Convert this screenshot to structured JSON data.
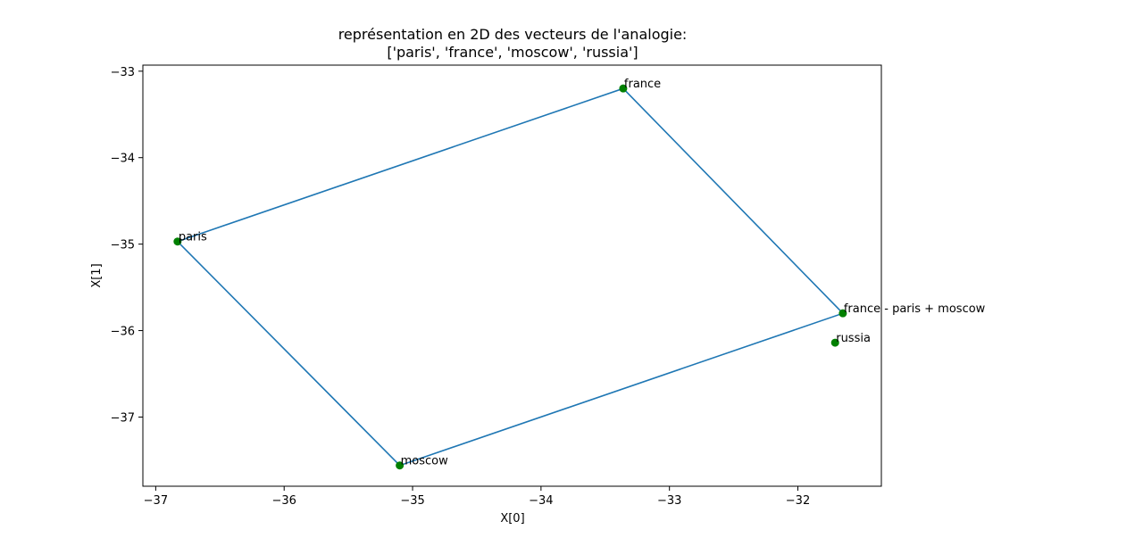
{
  "chart_data": {
    "type": "scatter",
    "title": "représentation en 2D des vecteurs de l'analogie:",
    "subtitle": "['paris', 'france', 'moscow', 'russia']",
    "xlabel": "X[0]",
    "ylabel": "X[1]",
    "xlim": [
      -37.1,
      -31.35
    ],
    "ylim": [
      -37.8,
      -32.93
    ],
    "xticks": [
      -37,
      -36,
      -35,
      -34,
      -33,
      -32
    ],
    "yticks": [
      -33,
      -34,
      -35,
      -36,
      -37
    ],
    "grid": false,
    "points": [
      {
        "label": "paris",
        "x": -36.83,
        "y": -34.97
      },
      {
        "label": "france",
        "x": -33.36,
        "y": -33.2
      },
      {
        "label": "moscow",
        "x": -35.1,
        "y": -37.56
      },
      {
        "label": "russia",
        "x": -31.71,
        "y": -36.14
      },
      {
        "label": "france - paris + moscow",
        "x": -31.65,
        "y": -35.8
      }
    ],
    "polygon": [
      "paris",
      "france",
      "france - paris + moscow",
      "moscow",
      "paris"
    ],
    "colors": {
      "line": "#1f77b4",
      "point": "#008000"
    }
  }
}
